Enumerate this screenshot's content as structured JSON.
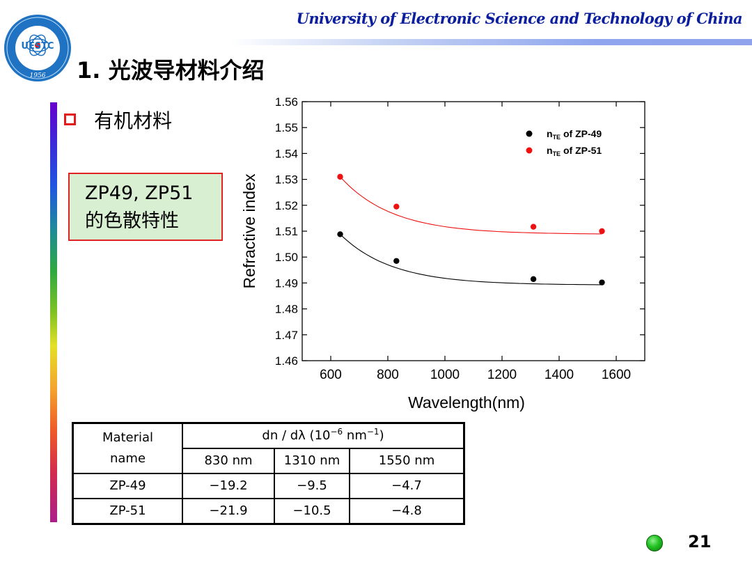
{
  "header": {
    "university": "University of Electronic Science and Technology of China"
  },
  "logo": {
    "text": "UESTC",
    "year": "1956"
  },
  "slide": {
    "title": "1. 光波导材料介绍",
    "bullet": "有机材料",
    "page_number": "21"
  },
  "callout": {
    "line1": "ZP49, ZP51",
    "line2": "的色散特性"
  },
  "chart_data": {
    "type": "scatter",
    "xlabel": "Wavelength(nm)",
    "ylabel": "Refractive index",
    "xlim": [
      500,
      1700
    ],
    "ylim": [
      1.46,
      1.56
    ],
    "xticks": [
      600,
      800,
      1000,
      1200,
      1400,
      1600
    ],
    "xtick_labels": [
      "600",
      "800",
      "1000",
      "1200",
      "1400",
      "1600"
    ],
    "yticks": [
      1.46,
      1.47,
      1.48,
      1.49,
      1.5,
      1.51,
      1.52,
      1.53,
      1.54,
      1.55,
      1.56
    ],
    "ytick_labels": [
      "1.46",
      "1.47",
      "1.48",
      "1.49",
      "1.50",
      "1.51",
      "1.52",
      "1.53",
      "1.54",
      "1.55",
      "1.56"
    ],
    "legend_position": "top-right",
    "series": [
      {
        "name": "n_TE of ZP-49",
        "legend_main": "n",
        "legend_sub": "TE",
        "legend_rest": " of ZP-49",
        "color": "#000000",
        "x": [
          633,
          830,
          1310,
          1550
        ],
        "y": [
          1.5088,
          1.4985,
          1.4915,
          1.4902
        ]
      },
      {
        "name": "n_TE of ZP-51",
        "legend_main": "n",
        "legend_sub": "TE",
        "legend_rest": " of ZP-51",
        "color": "#ee1111",
        "x": [
          633,
          830,
          1310,
          1550
        ],
        "y": [
          1.531,
          1.5195,
          1.5117,
          1.51
        ]
      }
    ],
    "fit_curves": [
      {
        "series": "n_TE of ZP-49",
        "a": 1.4892,
        "b": 0.0196,
        "k": 0.0055
      },
      {
        "series": "n_TE of ZP-51",
        "a": 1.5088,
        "b": 0.0222,
        "k": 0.0055
      }
    ]
  },
  "table": {
    "header_material": "Material",
    "header_name": "name",
    "header_dn": "dn / dλ (10",
    "header_exp1": "−6",
    "header_nm": " nm",
    "header_exp2": "−1",
    "header_close": ")",
    "wavelengths": [
      "830 nm",
      "1310 nm",
      "1550 nm"
    ],
    "rows": [
      {
        "material": "ZP-49",
        "values": [
          "−19.2",
          "−9.5",
          "−4.7"
        ]
      },
      {
        "material": "ZP-51",
        "values": [
          "−21.9",
          "−10.5",
          "−4.8"
        ]
      }
    ]
  }
}
